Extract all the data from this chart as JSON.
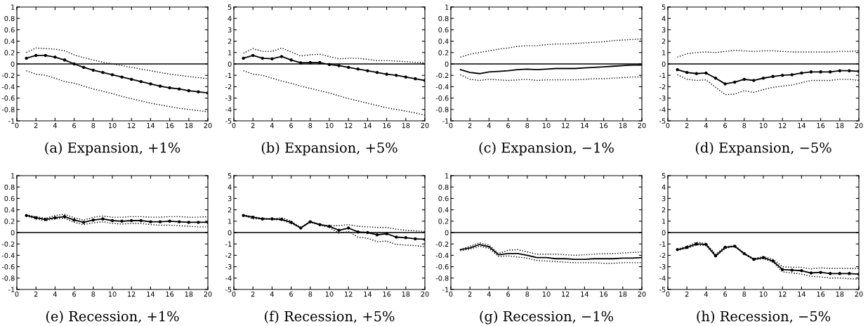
{
  "chart_data": [
    {
      "type": "line",
      "title": "(a) Expansion, +1%",
      "x": [
        1,
        2,
        3,
        4,
        5,
        6,
        7,
        8,
        9,
        10,
        11,
        12,
        13,
        14,
        15,
        16,
        17,
        18,
        19,
        20
      ],
      "xlim": [
        0,
        20
      ],
      "xticks": [
        0,
        2,
        4,
        6,
        8,
        10,
        12,
        14,
        16,
        18,
        20
      ],
      "ylim": [
        -1,
        1
      ],
      "yticks": [
        -1,
        -0.8,
        -0.6,
        -0.4,
        -0.2,
        0,
        0.2,
        0.4,
        0.6,
        0.8,
        1
      ],
      "grid": false,
      "ref_lines": [
        {
          "axis": "y",
          "value": 0,
          "color": "#000000",
          "line_style": "solid"
        }
      ],
      "series": [
        {
          "color": "#000000",
          "marker": "circle",
          "line_style": "solid",
          "values": [
            0.1,
            0.15,
            0.15,
            0.12,
            0.07,
            0.0,
            -0.06,
            -0.11,
            -0.15,
            -0.19,
            -0.23,
            -0.27,
            -0.31,
            -0.35,
            -0.39,
            -0.42,
            -0.44,
            -0.47,
            -0.49,
            -0.51
          ]
        },
        {
          "color": "#000000",
          "marker": "none",
          "line_style": "dotted",
          "values": [
            0.2,
            0.28,
            0.27,
            0.26,
            0.23,
            0.16,
            0.11,
            0.07,
            0.03,
            0.0,
            -0.03,
            -0.06,
            -0.09,
            -0.12,
            -0.15,
            -0.18,
            -0.2,
            -0.22,
            -0.24,
            -0.26
          ]
        },
        {
          "color": "#000000",
          "marker": "none",
          "line_style": "dotted",
          "values": [
            -0.12,
            -0.18,
            -0.2,
            -0.25,
            -0.31,
            -0.34,
            -0.39,
            -0.44,
            -0.48,
            -0.52,
            -0.57,
            -0.61,
            -0.65,
            -0.69,
            -0.72,
            -0.75,
            -0.78,
            -0.8,
            -0.82,
            -0.84
          ]
        }
      ]
    },
    {
      "type": "line",
      "title": "(b) Expansion, +5%",
      "x": [
        1,
        2,
        3,
        4,
        5,
        6,
        7,
        8,
        9,
        10,
        11,
        12,
        13,
        14,
        15,
        16,
        17,
        18,
        19,
        20
      ],
      "xlim": [
        0,
        20
      ],
      "xticks": [
        0,
        2,
        4,
        6,
        8,
        10,
        12,
        14,
        16,
        18,
        20
      ],
      "ylim": [
        -5,
        5
      ],
      "yticks": [
        -5,
        -4,
        -3,
        -2,
        -1,
        0,
        1,
        2,
        3,
        4,
        5
      ],
      "grid": false,
      "ref_lines": [
        {
          "axis": "y",
          "value": 0,
          "color": "#000000",
          "line_style": "solid"
        }
      ],
      "series": [
        {
          "color": "#000000",
          "marker": "circle",
          "line_style": "solid",
          "values": [
            0.5,
            0.75,
            0.5,
            0.45,
            0.65,
            0.35,
            0.1,
            0.12,
            0.12,
            -0.05,
            -0.15,
            -0.3,
            -0.45,
            -0.6,
            -0.75,
            -0.9,
            -1.0,
            -1.15,
            -1.3,
            -1.45
          ]
        },
        {
          "color": "#000000",
          "marker": "none",
          "line_style": "dotted",
          "values": [
            0.95,
            1.35,
            1.1,
            1.1,
            1.4,
            1.05,
            0.7,
            0.8,
            0.85,
            0.65,
            0.45,
            0.5,
            0.5,
            0.4,
            0.3,
            0.3,
            0.25,
            0.2,
            0.15,
            0.1
          ]
        },
        {
          "color": "#000000",
          "marker": "none",
          "line_style": "dotted",
          "values": [
            -0.6,
            -0.9,
            -1.0,
            -1.25,
            -1.5,
            -1.7,
            -1.95,
            -2.15,
            -2.35,
            -2.55,
            -2.8,
            -3.05,
            -3.25,
            -3.45,
            -3.65,
            -3.85,
            -4.0,
            -4.15,
            -4.3,
            -4.5
          ]
        }
      ]
    },
    {
      "type": "line",
      "title": "(c) Expansion, −1%",
      "x": [
        1,
        2,
        3,
        4,
        5,
        6,
        7,
        8,
        9,
        10,
        11,
        12,
        13,
        14,
        15,
        16,
        17,
        18,
        19,
        20
      ],
      "xlim": [
        0,
        20
      ],
      "xticks": [
        0,
        2,
        4,
        6,
        8,
        10,
        12,
        14,
        16,
        18,
        20
      ],
      "ylim": [
        -1,
        1
      ],
      "yticks": [
        -1,
        -0.8,
        -0.6,
        -0.4,
        -0.2,
        0,
        0.2,
        0.4,
        0.6,
        0.8,
        1
      ],
      "grid": false,
      "ref_lines": [
        {
          "axis": "y",
          "value": 0,
          "color": "#000000",
          "line_style": "solid"
        }
      ],
      "series": [
        {
          "color": "#000000",
          "marker": "none",
          "line_style": "solid",
          "values": [
            -0.1,
            -0.15,
            -0.17,
            -0.14,
            -0.13,
            -0.12,
            -0.1,
            -0.09,
            -0.1,
            -0.09,
            -0.08,
            -0.08,
            -0.08,
            -0.07,
            -0.06,
            -0.05,
            -0.04,
            -0.03,
            -0.02,
            -0.02
          ]
        },
        {
          "color": "#000000",
          "marker": "none",
          "line_style": "dotted",
          "values": [
            0.12,
            0.17,
            0.2,
            0.23,
            0.26,
            0.28,
            0.31,
            0.32,
            0.32,
            0.34,
            0.35,
            0.35,
            0.36,
            0.37,
            0.38,
            0.39,
            0.41,
            0.42,
            0.43,
            0.44
          ]
        },
        {
          "color": "#000000",
          "marker": "none",
          "line_style": "dotted",
          "values": [
            -0.19,
            -0.27,
            -0.29,
            -0.27,
            -0.28,
            -0.29,
            -0.28,
            -0.27,
            -0.29,
            -0.28,
            -0.28,
            -0.28,
            -0.28,
            -0.27,
            -0.26,
            -0.26,
            -0.25,
            -0.24,
            -0.23,
            -0.23
          ]
        }
      ]
    },
    {
      "type": "line",
      "title": "(d) Expansion, −5%",
      "x": [
        1,
        2,
        3,
        4,
        5,
        6,
        7,
        8,
        9,
        10,
        11,
        12,
        13,
        14,
        15,
        16,
        17,
        18,
        19,
        20
      ],
      "xlim": [
        0,
        20
      ],
      "xticks": [
        0,
        2,
        4,
        6,
        8,
        10,
        12,
        14,
        16,
        18,
        20
      ],
      "ylim": [
        -5,
        5
      ],
      "yticks": [
        -5,
        -4,
        -3,
        -2,
        -1,
        0,
        1,
        2,
        3,
        4,
        5
      ],
      "grid": false,
      "ref_lines": [
        {
          "axis": "y",
          "value": 0,
          "color": "#000000",
          "line_style": "solid"
        }
      ],
      "series": [
        {
          "color": "#000000",
          "marker": "circle",
          "line_style": "solid",
          "values": [
            -0.5,
            -0.75,
            -0.85,
            -0.8,
            -1.25,
            -1.75,
            -1.6,
            -1.35,
            -1.45,
            -1.25,
            -1.1,
            -1.0,
            -0.95,
            -0.8,
            -0.7,
            -0.7,
            -0.7,
            -0.6,
            -0.6,
            -0.65
          ]
        },
        {
          "color": "#000000",
          "marker": "none",
          "line_style": "dotted",
          "values": [
            0.6,
            0.9,
            1.0,
            1.05,
            1.0,
            1.1,
            1.2,
            1.15,
            1.1,
            1.15,
            1.15,
            1.1,
            1.05,
            1.05,
            1.05,
            1.05,
            1.05,
            1.1,
            1.1,
            1.15
          ]
        },
        {
          "color": "#000000",
          "marker": "none",
          "line_style": "dotted",
          "values": [
            -0.95,
            -1.35,
            -1.45,
            -1.4,
            -2.05,
            -2.7,
            -2.65,
            -2.35,
            -2.5,
            -2.25,
            -2.05,
            -1.95,
            -1.85,
            -1.65,
            -1.45,
            -1.45,
            -1.45,
            -1.35,
            -1.35,
            -1.45
          ]
        }
      ]
    },
    {
      "type": "line",
      "title": "(e) Recession, +1%",
      "x": [
        1,
        2,
        3,
        4,
        5,
        6,
        7,
        8,
        9,
        10,
        11,
        12,
        13,
        14,
        15,
        16,
        17,
        18,
        19,
        20
      ],
      "xlim": [
        0,
        20
      ],
      "xticks": [
        0,
        2,
        4,
        6,
        8,
        10,
        12,
        14,
        16,
        18,
        20
      ],
      "ylim": [
        -1,
        1
      ],
      "yticks": [
        -1,
        -0.8,
        -0.6,
        -0.4,
        -0.2,
        0,
        0.2,
        0.4,
        0.6,
        0.8,
        1
      ],
      "grid": false,
      "ref_lines": [
        {
          "axis": "y",
          "value": 0,
          "color": "#000000",
          "line_style": "solid"
        }
      ],
      "series": [
        {
          "color": "#000000",
          "marker": "circle",
          "line_style": "solid",
          "values": [
            0.3,
            0.26,
            0.23,
            0.26,
            0.28,
            0.22,
            0.18,
            0.22,
            0.24,
            0.21,
            0.2,
            0.21,
            0.21,
            0.19,
            0.19,
            0.2,
            0.19,
            0.18,
            0.18,
            0.18
          ]
        },
        {
          "color": "#000000",
          "marker": "none",
          "line_style": "dotted",
          "values": [
            0.31,
            0.28,
            0.25,
            0.3,
            0.32,
            0.26,
            0.22,
            0.27,
            0.29,
            0.27,
            0.27,
            0.28,
            0.28,
            0.27,
            0.27,
            0.28,
            0.28,
            0.27,
            0.27,
            0.28
          ]
        },
        {
          "color": "#000000",
          "marker": "none",
          "line_style": "dotted",
          "values": [
            0.29,
            0.24,
            0.21,
            0.24,
            0.25,
            0.18,
            0.14,
            0.17,
            0.19,
            0.16,
            0.15,
            0.16,
            0.16,
            0.14,
            0.13,
            0.13,
            0.12,
            0.11,
            0.1,
            0.1
          ]
        }
      ]
    },
    {
      "type": "line",
      "title": "(f) Recession, +5%",
      "x": [
        1,
        2,
        3,
        4,
        5,
        6,
        7,
        8,
        9,
        10,
        11,
        12,
        13,
        14,
        15,
        16,
        17,
        18,
        19,
        20
      ],
      "xlim": [
        0,
        20
      ],
      "xticks": [
        0,
        2,
        4,
        6,
        8,
        10,
        12,
        14,
        16,
        18,
        20
      ],
      "ylim": [
        -5,
        5
      ],
      "yticks": [
        -5,
        -4,
        -3,
        -2,
        -1,
        0,
        1,
        2,
        3,
        4,
        5
      ],
      "grid": false,
      "ref_lines": [
        {
          "axis": "y",
          "value": 0,
          "color": "#000000",
          "line_style": "solid"
        }
      ],
      "series": [
        {
          "color": "#000000",
          "marker": "circle",
          "line_style": "solid",
          "values": [
            1.5,
            1.35,
            1.2,
            1.2,
            1.15,
            0.9,
            0.4,
            0.95,
            0.7,
            0.55,
            0.2,
            0.4,
            0.05,
            0.0,
            -0.2,
            -0.1,
            -0.4,
            -0.45,
            -0.55,
            -0.6
          ]
        },
        {
          "color": "#000000",
          "marker": "none",
          "line_style": "dotted",
          "values": [
            1.55,
            1.4,
            1.25,
            1.2,
            1.3,
            1.0,
            0.45,
            1.0,
            0.7,
            0.6,
            0.6,
            0.7,
            0.55,
            0.5,
            0.45,
            0.45,
            0.3,
            0.2,
            0.15,
            0.1
          ]
        },
        {
          "color": "#000000",
          "marker": "none",
          "line_style": "dotted",
          "values": [
            1.5,
            1.2,
            1.2,
            1.15,
            1.1,
            0.8,
            0.4,
            0.9,
            0.65,
            0.45,
            -0.05,
            0.1,
            -0.4,
            -0.5,
            -0.8,
            -0.75,
            -1.05,
            -1.1,
            -1.15,
            -1.25
          ]
        }
      ]
    },
    {
      "type": "line",
      "title": "(g) Recession, −1%",
      "x": [
        1,
        2,
        3,
        4,
        5,
        6,
        7,
        8,
        9,
        10,
        11,
        12,
        13,
        14,
        15,
        16,
        17,
        18,
        19,
        20
      ],
      "xlim": [
        0,
        20
      ],
      "xticks": [
        0,
        2,
        4,
        6,
        8,
        10,
        12,
        14,
        16,
        18,
        20
      ],
      "ylim": [
        -1,
        1
      ],
      "yticks": [
        -1,
        -0.8,
        -0.6,
        -0.4,
        -0.2,
        0,
        0.2,
        0.4,
        0.6,
        0.8,
        1
      ],
      "grid": false,
      "ref_lines": [
        {
          "axis": "y",
          "value": 0,
          "color": "#000000",
          "line_style": "solid"
        }
      ],
      "series": [
        {
          "color": "#000000",
          "marker": "none",
          "line_style": "solid",
          "values": [
            -0.3,
            -0.27,
            -0.21,
            -0.25,
            -0.39,
            -0.37,
            -0.37,
            -0.4,
            -0.44,
            -0.44,
            -0.46,
            -0.46,
            -0.47,
            -0.47,
            -0.46,
            -0.46,
            -0.46,
            -0.45,
            -0.45,
            -0.44
          ]
        },
        {
          "color": "#000000",
          "marker": "none",
          "line_style": "dotted",
          "values": [
            -0.3,
            -0.24,
            -0.18,
            -0.22,
            -0.37,
            -0.31,
            -0.3,
            -0.34,
            -0.38,
            -0.38,
            -0.38,
            -0.39,
            -0.4,
            -0.39,
            -0.38,
            -0.37,
            -0.37,
            -0.36,
            -0.35,
            -0.34
          ]
        },
        {
          "color": "#000000",
          "marker": "none",
          "line_style": "dotted",
          "values": [
            -0.32,
            -0.29,
            -0.24,
            -0.28,
            -0.42,
            -0.41,
            -0.43,
            -0.45,
            -0.49,
            -0.5,
            -0.51,
            -0.52,
            -0.53,
            -0.53,
            -0.53,
            -0.54,
            -0.54,
            -0.53,
            -0.53,
            -0.53
          ]
        }
      ]
    },
    {
      "type": "line",
      "title": "(h) Recession, −5%",
      "x": [
        1,
        2,
        3,
        4,
        5,
        6,
        7,
        8,
        9,
        10,
        11,
        12,
        13,
        14,
        15,
        16,
        17,
        18,
        19,
        20
      ],
      "xlim": [
        0,
        20
      ],
      "xticks": [
        0,
        2,
        4,
        6,
        8,
        10,
        12,
        14,
        16,
        18,
        20
      ],
      "ylim": [
        -5,
        5
      ],
      "yticks": [
        -5,
        -4,
        -3,
        -2,
        -1,
        0,
        1,
        2,
        3,
        4,
        5
      ],
      "grid": false,
      "ref_lines": [
        {
          "axis": "y",
          "value": 0,
          "color": "#000000",
          "line_style": "solid"
        }
      ],
      "series": [
        {
          "color": "#000000",
          "marker": "circle",
          "line_style": "solid",
          "values": [
            -1.5,
            -1.3,
            -1.0,
            -1.05,
            -2.05,
            -1.3,
            -1.2,
            -1.85,
            -2.35,
            -2.2,
            -2.5,
            -3.25,
            -3.3,
            -3.35,
            -3.55,
            -3.5,
            -3.6,
            -3.6,
            -3.6,
            -3.65
          ]
        },
        {
          "color": "#000000",
          "marker": "none",
          "line_style": "dotted",
          "values": [
            -1.45,
            -1.2,
            -0.85,
            -0.95,
            -1.9,
            -1.25,
            -1.15,
            -1.8,
            -2.3,
            -2.1,
            -2.35,
            -3.0,
            -3.05,
            -3.05,
            -3.2,
            -3.1,
            -3.15,
            -3.15,
            -3.15,
            -3.15
          ]
        },
        {
          "color": "#000000",
          "marker": "none",
          "line_style": "dotted",
          "values": [
            -1.55,
            -1.4,
            -1.1,
            -1.15,
            -2.1,
            -1.4,
            -1.2,
            -1.9,
            -2.4,
            -2.3,
            -2.6,
            -3.45,
            -3.55,
            -3.65,
            -3.85,
            -3.9,
            -4.0,
            -4.0,
            -4.05,
            -4.1
          ]
        }
      ]
    }
  ]
}
